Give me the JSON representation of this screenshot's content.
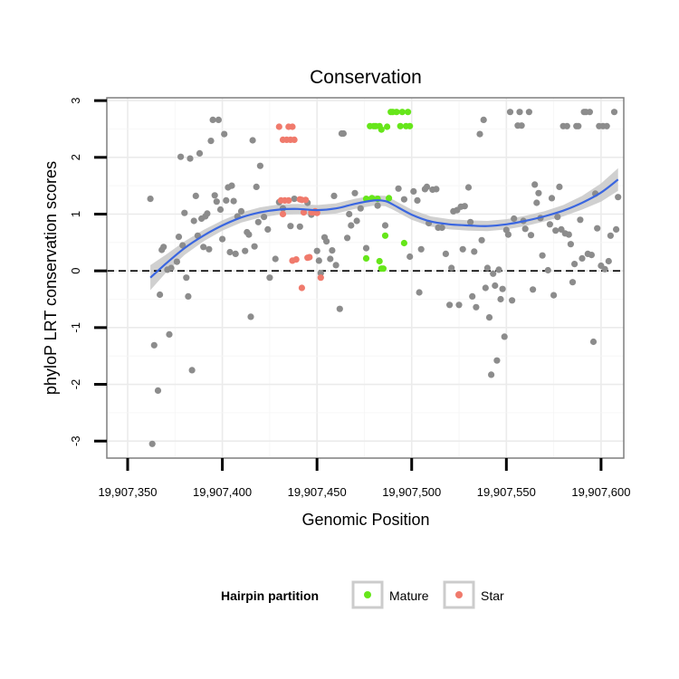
{
  "chart_data": {
    "type": "scatter",
    "title": "Conservation",
    "xlabel": "Genomic Position",
    "ylabel": "phyloP LRT conservation scores",
    "xlim": [
      19907339,
      19907612
    ],
    "ylim": [
      -3.3,
      3.05
    ],
    "x_ticks": [
      19907350,
      19907400,
      19907450,
      19907500,
      19907550,
      19907600
    ],
    "x_tick_labels": [
      "19,907,350",
      "19,907,400",
      "19,907,450",
      "19,907,500",
      "19,907,550",
      "19,907,600"
    ],
    "y_ticks": [
      -3,
      -2,
      -1,
      0,
      1,
      2,
      3
    ],
    "y_tick_labels": [
      "-3",
      "-2",
      "-1",
      "0",
      "1",
      "2",
      "3"
    ],
    "grid": true,
    "reference_line": {
      "y": 0,
      "style": "dashed"
    },
    "legend": {
      "title": "Hairpin partition",
      "placement": "bottom",
      "entries": [
        {
          "label": "Mature",
          "color": "#66e61a"
        },
        {
          "label": "Star",
          "color": "#f07a6c"
        }
      ]
    },
    "colors": {
      "other": "#8c8c8c",
      "Mature": "#66e61a",
      "Star": "#f07a6c",
      "smooth": "#3a66e0",
      "band": "#c8c8c8"
    },
    "series": [
      {
        "key": "other",
        "points": [
          [
            19907362,
            1.27
          ],
          [
            19907363,
            -3.05
          ],
          [
            19907364,
            -1.31
          ],
          [
            19907366,
            -2.11
          ],
          [
            19907367,
            -0.42
          ],
          [
            19907368,
            0.37
          ],
          [
            19907369,
            0.42
          ],
          [
            19907371,
            0.02
          ],
          [
            19907372,
            -1.12
          ],
          [
            19907373,
            0.05
          ],
          [
            19907376,
            0.16
          ],
          [
            19907377,
            0.6
          ],
          [
            19907378,
            2.01
          ],
          [
            19907379,
            0.45
          ],
          [
            19907380,
            1.02
          ],
          [
            19907381,
            -0.12
          ],
          [
            19907382,
            -0.45
          ],
          [
            19907383,
            1.98
          ],
          [
            19907384,
            -1.75
          ],
          [
            19907385,
            0.88
          ],
          [
            19907386,
            1.32
          ],
          [
            19907387,
            0.62
          ],
          [
            19907388,
            2.07
          ],
          [
            19907389,
            0.92
          ],
          [
            19907390,
            0.42
          ],
          [
            19907391,
            0.96
          ],
          [
            19907392,
            1.01
          ],
          [
            19907393,
            0.38
          ],
          [
            19907394,
            2.29
          ],
          [
            19907395,
            2.66
          ],
          [
            19907396,
            1.33
          ],
          [
            19907397,
            1.22
          ],
          [
            19907398,
            2.66
          ],
          [
            19907399,
            1.08
          ],
          [
            19907400,
            0.56
          ],
          [
            19907401,
            2.41
          ],
          [
            19907402,
            1.24
          ],
          [
            19907403,
            1.47
          ],
          [
            19907404,
            0.33
          ],
          [
            19907405,
            1.5
          ],
          [
            19907406,
            1.23
          ],
          [
            19907407,
            0.3
          ],
          [
            19907408,
            0.96
          ],
          [
            19907410,
            1.05
          ],
          [
            19907412,
            0.35
          ],
          [
            19907413,
            0.68
          ],
          [
            19907414,
            0.64
          ],
          [
            19907415,
            -0.81
          ],
          [
            19907416,
            2.3
          ],
          [
            19907417,
            0.43
          ],
          [
            19907418,
            1.48
          ],
          [
            19907419,
            0.86
          ],
          [
            19907420,
            1.85
          ],
          [
            19907422,
            0.95
          ],
          [
            19907424,
            0.73
          ],
          [
            19907425,
            -0.12
          ],
          [
            19907428,
            0.21
          ],
          [
            19907430,
            1.21
          ],
          [
            19907432,
            1.1
          ],
          [
            19907436,
            0.79
          ],
          [
            19907438,
            1.27
          ],
          [
            19907441,
            0.78
          ],
          [
            19907445,
            1.2
          ],
          [
            19907447,
            0.99
          ],
          [
            19907450,
            0.35
          ],
          [
            19907451,
            0.18
          ],
          [
            19907452,
            -0.04
          ],
          [
            19907454,
            0.59
          ],
          [
            19907455,
            0.52
          ],
          [
            19907457,
            0.21
          ],
          [
            19907458,
            0.36
          ],
          [
            19907459,
            1.32
          ],
          [
            19907460,
            0.1
          ],
          [
            19907462,
            -0.67
          ],
          [
            19907463,
            2.42
          ],
          [
            19907464,
            2.42
          ],
          [
            19907466,
            0.58
          ],
          [
            19907467,
            1.0
          ],
          [
            19907468,
            0.8
          ],
          [
            19907470,
            1.37
          ],
          [
            19907471,
            0.88
          ],
          [
            19907473,
            1.1
          ],
          [
            19907476,
            0.4
          ],
          [
            19907482,
            1.15
          ],
          [
            19907486,
            0.8
          ],
          [
            19907493,
            1.45
          ],
          [
            19907496,
            1.26
          ],
          [
            19907499,
            0.25
          ],
          [
            19907501,
            1.4
          ],
          [
            19907503,
            1.24
          ],
          [
            19907504,
            -0.38
          ],
          [
            19907505,
            0.38
          ],
          [
            19907507,
            1.44
          ],
          [
            19907508,
            1.48
          ],
          [
            19907509,
            0.84
          ],
          [
            19907511,
            1.43
          ],
          [
            19907513,
            1.44
          ],
          [
            19907514,
            0.76
          ],
          [
            19907516,
            0.76
          ],
          [
            19907518,
            0.3
          ],
          [
            19907520,
            -0.6
          ],
          [
            19907521,
            0.05
          ],
          [
            19907522,
            1.05
          ],
          [
            19907524,
            1.07
          ],
          [
            19907525,
            -0.6
          ],
          [
            19907526,
            1.13
          ],
          [
            19907527,
            0.38
          ],
          [
            19907528,
            1.14
          ],
          [
            19907530,
            1.47
          ],
          [
            19907531,
            0.86
          ],
          [
            19907532,
            -0.45
          ],
          [
            19907533,
            0.34
          ],
          [
            19907534,
            -0.64
          ],
          [
            19907536,
            2.41
          ],
          [
            19907537,
            0.54
          ],
          [
            19907538,
            2.66
          ],
          [
            19907539,
            -0.3
          ],
          [
            19907540,
            0.05
          ],
          [
            19907541,
            -0.82
          ],
          [
            19907542,
            -1.83
          ],
          [
            19907543,
            -0.05
          ],
          [
            19907544,
            -0.26
          ],
          [
            19907545,
            -1.58
          ],
          [
            19907546,
            0.02
          ],
          [
            19907547,
            -0.5
          ],
          [
            19907548,
            -0.32
          ],
          [
            19907549,
            -1.16
          ],
          [
            19907550,
            0.72
          ],
          [
            19907551,
            0.64
          ],
          [
            19907552,
            2.8
          ],
          [
            19907553,
            -0.52
          ],
          [
            19907554,
            0.92
          ],
          [
            19907556,
            2.56
          ],
          [
            19907557,
            2.8
          ],
          [
            19907558,
            2.56
          ],
          [
            19907559,
            0.88
          ],
          [
            19907560,
            0.74
          ],
          [
            19907562,
            2.8
          ],
          [
            19907563,
            0.63
          ],
          [
            19907564,
            -0.33
          ],
          [
            19907565,
            1.52
          ],
          [
            19907566,
            1.2
          ],
          [
            19907567,
            1.37
          ],
          [
            19907568,
            0.93
          ],
          [
            19907569,
            0.27
          ],
          [
            19907572,
            0.01
          ],
          [
            19907573,
            0.82
          ],
          [
            19907574,
            1.28
          ],
          [
            19907575,
            -0.43
          ],
          [
            19907576,
            0.71
          ],
          [
            19907577,
            0.95
          ],
          [
            19907578,
            1.48
          ],
          [
            19907579,
            0.73
          ],
          [
            19907580,
            2.55
          ],
          [
            19907581,
            0.66
          ],
          [
            19907582,
            2.55
          ],
          [
            19907583,
            0.64
          ],
          [
            19907584,
            0.47
          ],
          [
            19907585,
            -0.2
          ],
          [
            19907586,
            0.12
          ],
          [
            19907587,
            2.55
          ],
          [
            19907588,
            2.55
          ],
          [
            19907589,
            0.9
          ],
          [
            19907590,
            0.22
          ],
          [
            19907591,
            2.8
          ],
          [
            19907592,
            2.8
          ],
          [
            19907593,
            0.3
          ],
          [
            19907594,
            2.8
          ],
          [
            19907595,
            0.28
          ],
          [
            19907596,
            -1.25
          ],
          [
            19907597,
            1.36
          ],
          [
            19907598,
            0.75
          ],
          [
            19907599,
            2.55
          ],
          [
            19907600,
            0.09
          ],
          [
            19907601,
            2.55
          ],
          [
            19907602,
            0.03
          ],
          [
            19907603,
            2.55
          ],
          [
            19907604,
            0.17
          ],
          [
            19907605,
            0.62
          ],
          [
            19907607,
            2.8
          ],
          [
            19907608,
            0.73
          ],
          [
            19907609,
            1.3
          ]
        ]
      },
      {
        "key": "Mature",
        "name": "Mature",
        "points": [
          [
            19907476,
            1.27
          ],
          [
            19907478,
            2.55
          ],
          [
            19907479,
            1.28
          ],
          [
            19907480,
            2.55
          ],
          [
            19907481,
            2.55
          ],
          [
            19907482,
            1.27
          ],
          [
            19907483,
            2.55
          ],
          [
            19907484,
            2.49
          ],
          [
            19907485,
            0.04
          ],
          [
            19907486,
            0.62
          ],
          [
            19907487,
            2.54
          ],
          [
            19907488,
            1.28
          ],
          [
            19907489,
            2.8
          ],
          [
            19907490,
            2.8
          ],
          [
            19907492,
            2.8
          ],
          [
            19907494,
            2.55
          ],
          [
            19907495,
            2.8
          ],
          [
            19907496,
            0.49
          ],
          [
            19907497,
            2.55
          ],
          [
            19907498,
            2.8
          ],
          [
            19907499,
            2.55
          ],
          [
            19907476,
            0.22
          ],
          [
            19907484,
            0.04
          ],
          [
            19907483,
            0.17
          ]
        ]
      },
      {
        "key": "Star",
        "name": "Star",
        "points": [
          [
            19907430,
            2.54
          ],
          [
            19907431,
            1.24
          ],
          [
            19907432,
            2.31
          ],
          [
            19907433,
            1.24
          ],
          [
            19907434,
            2.31
          ],
          [
            19907435,
            1.24
          ],
          [
            19907435,
            2.54
          ],
          [
            19907436,
            2.31
          ],
          [
            19907437,
            2.54
          ],
          [
            19907437,
            0.18
          ],
          [
            19907438,
            2.31
          ],
          [
            19907439,
            0.2
          ],
          [
            19907441,
            1.26
          ],
          [
            19907442,
            1.25
          ],
          [
            19907442,
            -0.3
          ],
          [
            19907443,
            1.03
          ],
          [
            19907444,
            1.25
          ],
          [
            19907445,
            0.23
          ],
          [
            19907446,
            0.24
          ],
          [
            19907447,
            1.03
          ],
          [
            19907448,
            1.03
          ],
          [
            19907449,
            1.05
          ],
          [
            19907450,
            1.02
          ],
          [
            19907452,
            -0.12
          ],
          [
            19907432,
            1.0
          ]
        ]
      }
    ],
    "smooth": {
      "x": [
        19907362,
        19907370,
        19907380,
        19907390,
        19907400,
        19907410,
        19907420,
        19907430,
        19907440,
        19907450,
        19907460,
        19907470,
        19907480,
        19907486,
        19907490,
        19907500,
        19907510,
        19907520,
        19907530,
        19907540,
        19907550,
        19907560,
        19907570,
        19907580,
        19907590,
        19907600,
        19907609
      ],
      "y": [
        -0.12,
        0.12,
        0.4,
        0.62,
        0.8,
        0.94,
        1.03,
        1.08,
        1.09,
        1.07,
        1.1,
        1.18,
        1.24,
        1.23,
        1.17,
        0.99,
        0.87,
        0.82,
        0.8,
        0.79,
        0.82,
        0.88,
        0.96,
        1.06,
        1.2,
        1.38,
        1.61
      ],
      "se": [
        0.22,
        0.16,
        0.12,
        0.1,
        0.09,
        0.09,
        0.09,
        0.09,
        0.09,
        0.09,
        0.09,
        0.09,
        0.09,
        0.09,
        0.09,
        0.09,
        0.09,
        0.09,
        0.09,
        0.09,
        0.09,
        0.09,
        0.09,
        0.1,
        0.12,
        0.16,
        0.2
      ]
    }
  }
}
